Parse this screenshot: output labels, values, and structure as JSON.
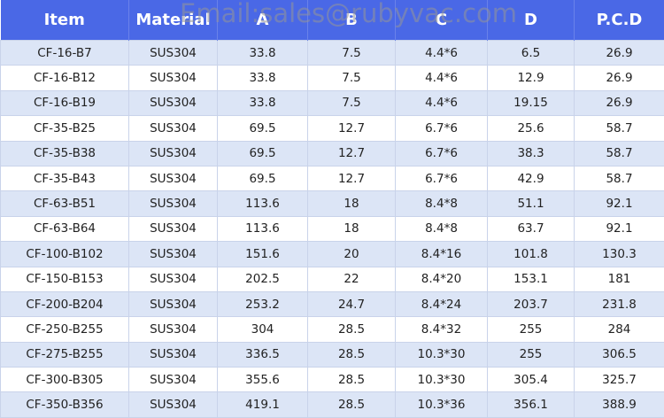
{
  "watermark": "Email:sales@rubyvac.com",
  "table": {
    "header": [
      "Item",
      "Material",
      "A",
      "B",
      "C",
      "D",
      "P.C.D"
    ],
    "rows": [
      [
        "CF-16-B7",
        "SUS304",
        "33.8",
        "7.5",
        "4.4*6",
        "6.5",
        "26.9"
      ],
      [
        "CF-16-B12",
        "SUS304",
        "33.8",
        "7.5",
        "4.4*6",
        "12.9",
        "26.9"
      ],
      [
        "CF-16-B19",
        "SUS304",
        "33.8",
        "7.5",
        "4.4*6",
        "19.15",
        "26.9"
      ],
      [
        "CF-35-B25",
        "SUS304",
        "69.5",
        "12.7",
        "6.7*6",
        "25.6",
        "58.7"
      ],
      [
        "CF-35-B38",
        "SUS304",
        "69.5",
        "12.7",
        "6.7*6",
        "38.3",
        "58.7"
      ],
      [
        "CF-35-B43",
        "SUS304",
        "69.5",
        "12.7",
        "6.7*6",
        "42.9",
        "58.7"
      ],
      [
        "CF-63-B51",
        "SUS304",
        "113.6",
        "18",
        "8.4*8",
        "51.1",
        "92.1"
      ],
      [
        "CF-63-B64",
        "SUS304",
        "113.6",
        "18",
        "8.4*8",
        "63.7",
        "92.1"
      ],
      [
        "CF-100-B102",
        "SUS304",
        "151.6",
        "20",
        "8.4*16",
        "101.8",
        "130.3"
      ],
      [
        "CF-150-B153",
        "SUS304",
        "202.5",
        "22",
        "8.4*20",
        "153.1",
        "181"
      ],
      [
        "CF-200-B204",
        "SUS304",
        "253.2",
        "24.7",
        "8.4*24",
        "203.7",
        "231.8"
      ],
      [
        "CF-250-B255",
        "SUS304",
        "304",
        "28.5",
        "8.4*32",
        "255",
        "284"
      ],
      [
        "CF-275-B255",
        "SUS304",
        "336.5",
        "28.5",
        "10.3*30",
        "255",
        "306.5"
      ],
      [
        "CF-300-B305",
        "SUS304",
        "355.6",
        "28.5",
        "10.3*30",
        "305.4",
        "325.7"
      ],
      [
        "CF-350-B356",
        "SUS304",
        "419.1",
        "28.5",
        "10.3*36",
        "356.1",
        "388.9"
      ]
    ]
  }
}
